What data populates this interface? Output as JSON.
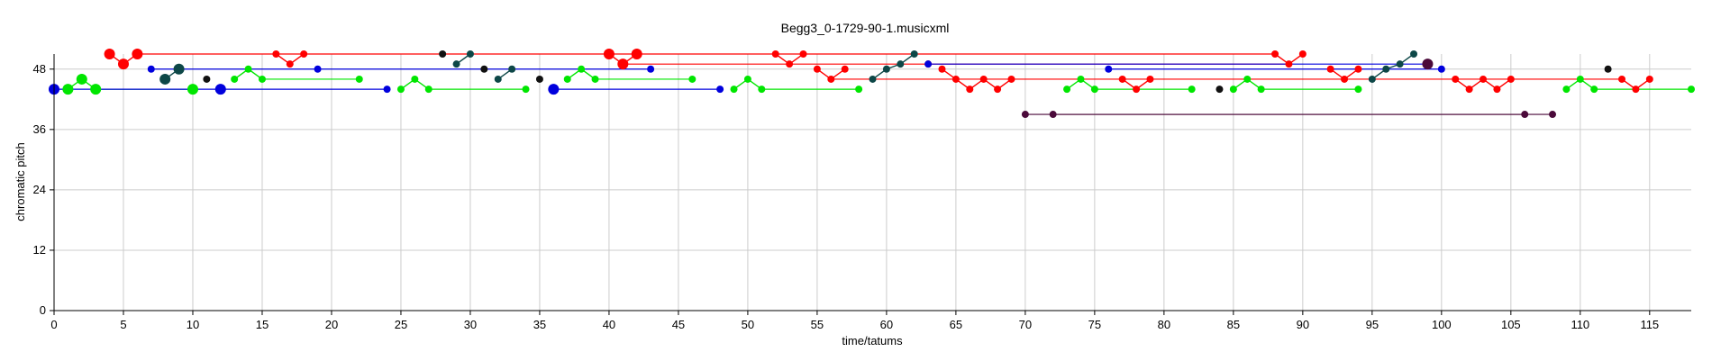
{
  "chart_data": {
    "type": "scatter",
    "title": "Begg3_0-1729-90-1.musicxml",
    "xlabel": "time/tatums",
    "ylabel": "chromatic pitch",
    "xlim": [
      0,
      118
    ],
    "ylim": [
      0,
      51
    ],
    "xticks": [
      0,
      5,
      10,
      15,
      20,
      25,
      30,
      35,
      40,
      45,
      50,
      55,
      60,
      65,
      70,
      75,
      80,
      85,
      90,
      95,
      100,
      105,
      110,
      115
    ],
    "yticks": [
      0,
      12,
      24,
      36,
      48
    ],
    "grid": true,
    "colors": {
      "red": "#ff0000",
      "green": "#00e600",
      "blue": "#0000dd",
      "teal": "#0d4747",
      "purple": "#4b0a3a",
      "black": "#111111",
      "grid": "#cccccc"
    },
    "series": [
      {
        "color": "red",
        "points": [
          [
            4,
            51
          ],
          [
            5,
            49
          ],
          [
            6,
            51
          ],
          [
            16,
            51
          ],
          [
            17,
            49
          ],
          [
            18,
            51
          ],
          [
            40,
            51
          ],
          [
            41,
            49
          ],
          [
            42,
            51
          ],
          [
            52,
            51
          ],
          [
            53,
            49
          ],
          [
            54,
            51
          ],
          [
            55,
            48
          ],
          [
            56,
            46
          ],
          [
            57,
            48
          ],
          [
            63,
            49
          ],
          [
            64,
            48
          ],
          [
            65,
            46
          ],
          [
            66,
            44
          ],
          [
            67,
            46
          ],
          [
            68,
            44
          ],
          [
            69,
            46
          ],
          [
            77,
            46
          ],
          [
            78,
            44
          ],
          [
            79,
            46
          ],
          [
            88,
            51
          ],
          [
            89,
            49
          ],
          [
            90,
            51
          ],
          [
            92,
            48
          ],
          [
            93,
            46
          ],
          [
            94,
            48
          ],
          [
            101,
            46
          ],
          [
            102,
            44
          ],
          [
            103,
            46
          ],
          [
            104,
            44
          ],
          [
            105,
            46
          ],
          [
            113,
            46
          ],
          [
            114,
            44
          ],
          [
            115,
            46
          ]
        ],
        "segments": [
          [
            6,
            51,
            88,
            51
          ],
          [
            41,
            49,
            89,
            49
          ],
          [
            56,
            46,
            113,
            46
          ]
        ],
        "big": [
          4,
          5,
          6,
          40,
          41,
          42
        ]
      },
      {
        "color": "green",
        "points": [
          [
            1,
            44
          ],
          [
            2,
            46
          ],
          [
            3,
            44
          ],
          [
            10,
            44
          ],
          [
            13,
            46
          ],
          [
            14,
            48
          ],
          [
            15,
            46
          ],
          [
            22,
            46
          ],
          [
            25,
            44
          ],
          [
            26,
            46
          ],
          [
            27,
            44
          ],
          [
            34,
            44
          ],
          [
            37,
            46
          ],
          [
            38,
            48
          ],
          [
            39,
            46
          ],
          [
            46,
            46
          ],
          [
            49,
            44
          ],
          [
            50,
            46
          ],
          [
            51,
            44
          ],
          [
            58,
            44
          ],
          [
            73,
            44
          ],
          [
            74,
            46
          ],
          [
            75,
            44
          ],
          [
            82,
            44
          ],
          [
            85,
            44
          ],
          [
            86,
            46
          ],
          [
            87,
            44
          ],
          [
            94,
            44
          ],
          [
            109,
            44
          ],
          [
            110,
            46
          ],
          [
            111,
            44
          ],
          [
            118,
            44
          ]
        ],
        "segments": [
          [
            15,
            46,
            22,
            46
          ],
          [
            27,
            44,
            34,
            44
          ],
          [
            39,
            46,
            46,
            46
          ],
          [
            3,
            44,
            10,
            44
          ],
          [
            51,
            44,
            58,
            44
          ],
          [
            75,
            44,
            82,
            44
          ],
          [
            87,
            44,
            94,
            44
          ],
          [
            111,
            44,
            118,
            44
          ]
        ],
        "big": [
          1,
          2,
          3,
          10
        ]
      },
      {
        "color": "blue",
        "points": [
          [
            0,
            44
          ],
          [
            7,
            48
          ],
          [
            12,
            44
          ],
          [
            19,
            48
          ],
          [
            24,
            44
          ],
          [
            36,
            44
          ],
          [
            43,
            48
          ],
          [
            48,
            44
          ],
          [
            63,
            49
          ],
          [
            76,
            48
          ],
          [
            99,
            49
          ],
          [
            100,
            48
          ]
        ],
        "segments": [
          [
            0,
            44,
            24,
            44
          ],
          [
            7,
            48,
            43,
            48
          ],
          [
            36,
            44,
            48,
            44
          ],
          [
            63,
            49,
            99,
            49
          ],
          [
            76,
            48,
            100,
            48
          ]
        ],
        "big": [
          0,
          12,
          36
        ]
      },
      {
        "color": "teal",
        "points": [
          [
            8,
            46
          ],
          [
            9,
            48
          ],
          [
            29,
            49
          ],
          [
            30,
            51
          ],
          [
            32,
            46
          ],
          [
            33,
            48
          ],
          [
            59,
            46
          ],
          [
            60,
            48
          ],
          [
            61,
            49
          ],
          [
            62,
            51
          ],
          [
            95,
            46
          ],
          [
            96,
            48
          ],
          [
            97,
            49
          ],
          [
            98,
            51
          ]
        ],
        "segments": [],
        "big": [
          8,
          9
        ]
      },
      {
        "color": "purple",
        "points": [
          [
            70,
            39
          ],
          [
            72,
            39
          ],
          [
            106,
            39
          ],
          [
            108,
            39
          ],
          [
            99,
            49
          ]
        ],
        "segments": [
          [
            70,
            39,
            106,
            39
          ],
          [
            72,
            39,
            108,
            39
          ]
        ],
        "big": [
          99
        ]
      },
      {
        "color": "black",
        "points": [
          [
            11,
            46
          ],
          [
            28,
            51
          ],
          [
            31,
            48
          ],
          [
            35,
            46
          ],
          [
            84,
            44
          ],
          [
            112,
            48
          ]
        ],
        "segments": [],
        "big": []
      }
    ],
    "connections": [
      [
        "red",
        [
          [
            4,
            51
          ],
          [
            5,
            49
          ],
          [
            6,
            51
          ]
        ]
      ],
      [
        "red",
        [
          [
            16,
            51
          ],
          [
            17,
            49
          ],
          [
            18,
            51
          ]
        ]
      ],
      [
        "red",
        [
          [
            40,
            51
          ],
          [
            41,
            49
          ],
          [
            42,
            51
          ]
        ]
      ],
      [
        "red",
        [
          [
            52,
            51
          ],
          [
            53,
            49
          ],
          [
            54,
            51
          ]
        ]
      ],
      [
        "red",
        [
          [
            55,
            48
          ],
          [
            56,
            46
          ],
          [
            57,
            48
          ]
        ]
      ],
      [
        "red",
        [
          [
            64,
            48
          ],
          [
            65,
            46
          ],
          [
            66,
            44
          ],
          [
            67,
            46
          ],
          [
            68,
            44
          ],
          [
            69,
            46
          ]
        ]
      ],
      [
        "red",
        [
          [
            77,
            46
          ],
          [
            78,
            44
          ],
          [
            79,
            46
          ]
        ]
      ],
      [
        "red",
        [
          [
            88,
            51
          ],
          [
            89,
            49
          ],
          [
            90,
            51
          ]
        ]
      ],
      [
        "red",
        [
          [
            92,
            48
          ],
          [
            93,
            46
          ],
          [
            94,
            48
          ]
        ]
      ],
      [
        "red",
        [
          [
            101,
            46
          ],
          [
            102,
            44
          ],
          [
            103,
            46
          ],
          [
            104,
            44
          ],
          [
            105,
            46
          ]
        ]
      ],
      [
        "red",
        [
          [
            113,
            46
          ],
          [
            114,
            44
          ],
          [
            115,
            46
          ]
        ]
      ],
      [
        "green",
        [
          [
            1,
            44
          ],
          [
            2,
            46
          ],
          [
            3,
            44
          ]
        ]
      ],
      [
        "green",
        [
          [
            13,
            46
          ],
          [
            14,
            48
          ],
          [
            15,
            46
          ]
        ]
      ],
      [
        "green",
        [
          [
            25,
            44
          ],
          [
            26,
            46
          ],
          [
            27,
            44
          ]
        ]
      ],
      [
        "green",
        [
          [
            37,
            46
          ],
          [
            38,
            48
          ],
          [
            39,
            46
          ]
        ]
      ],
      [
        "green",
        [
          [
            49,
            44
          ],
          [
            50,
            46
          ],
          [
            51,
            44
          ]
        ]
      ],
      [
        "green",
        [
          [
            73,
            44
          ],
          [
            74,
            46
          ],
          [
            75,
            44
          ]
        ]
      ],
      [
        "green",
        [
          [
            85,
            44
          ],
          [
            86,
            46
          ],
          [
            87,
            44
          ]
        ]
      ],
      [
        "green",
        [
          [
            109,
            44
          ],
          [
            110,
            46
          ],
          [
            111,
            44
          ]
        ]
      ],
      [
        "teal",
        [
          [
            8,
            46
          ],
          [
            9,
            48
          ]
        ]
      ],
      [
        "teal",
        [
          [
            29,
            49
          ],
          [
            30,
            51
          ]
        ]
      ],
      [
        "teal",
        [
          [
            32,
            46
          ],
          [
            33,
            48
          ]
        ]
      ],
      [
        "teal",
        [
          [
            59,
            46
          ],
          [
            60,
            48
          ],
          [
            61,
            49
          ],
          [
            62,
            51
          ]
        ]
      ],
      [
        "teal",
        [
          [
            95,
            46
          ],
          [
            96,
            48
          ],
          [
            97,
            49
          ],
          [
            98,
            51
          ]
        ]
      ]
    ]
  }
}
